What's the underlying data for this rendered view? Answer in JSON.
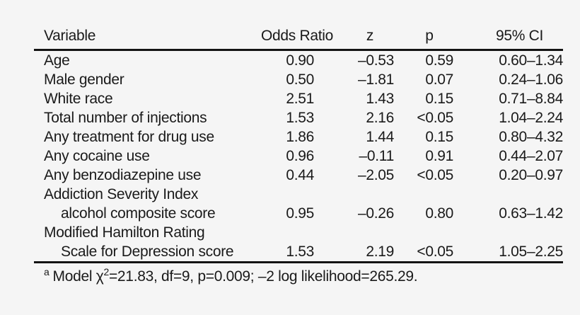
{
  "colors": {
    "background": "#f5f5f5",
    "text": "#1a1a1a",
    "rule": "#141414"
  },
  "table": {
    "columns": [
      {
        "key": "variable",
        "label": "Variable"
      },
      {
        "key": "odds_ratio",
        "label": "Odds Ratio"
      },
      {
        "key": "z",
        "label": "z"
      },
      {
        "key": "p",
        "label": "p"
      },
      {
        "key": "ci",
        "label": "95% CI"
      }
    ],
    "rows": [
      {
        "variable": "Age",
        "indent": false,
        "odds_ratio": "0.90",
        "z": "–0.53",
        "p": "0.59",
        "ci": "0.60–1.34"
      },
      {
        "variable": "Male gender",
        "indent": false,
        "odds_ratio": "0.50",
        "z": "–1.81",
        "p": "0.07",
        "ci": "0.24–1.06"
      },
      {
        "variable": "White race",
        "indent": false,
        "odds_ratio": "2.51",
        "z": "1.43",
        "p": "0.15",
        "ci": "0.71–8.84"
      },
      {
        "variable": "Total number of injections",
        "indent": false,
        "odds_ratio": "1.53",
        "z": "2.16",
        "p": "<0.05",
        "ci": "1.04–2.24"
      },
      {
        "variable": "Any treatment for drug use",
        "indent": false,
        "odds_ratio": "1.86",
        "z": "1.44",
        "p": "0.15",
        "ci": "0.80–4.32"
      },
      {
        "variable": "Any cocaine use",
        "indent": false,
        "odds_ratio": "0.96",
        "z": "–0.11",
        "p": "0.91",
        "ci": "0.44–2.07"
      },
      {
        "variable": "Any benzodiazepine use",
        "indent": false,
        "odds_ratio": "0.44",
        "z": "–2.05",
        "p": "<0.05",
        "ci": "0.20–0.97"
      },
      {
        "variable": "Addiction Severity Index",
        "indent": false,
        "odds_ratio": "",
        "z": "",
        "p": "",
        "ci": ""
      },
      {
        "variable": "alcohol composite score",
        "indent": true,
        "odds_ratio": "0.95",
        "z": "–0.26",
        "p": "0.80",
        "ci": "0.63–1.42"
      },
      {
        "variable": "Modified Hamilton Rating",
        "indent": false,
        "odds_ratio": "",
        "z": "",
        "p": "",
        "ci": ""
      },
      {
        "variable": "Scale for Depression score",
        "indent": true,
        "odds_ratio": "1.53",
        "z": "2.19",
        "p": "<0.05",
        "ci": "1.05–2.25"
      }
    ],
    "footnote": {
      "marker": "a",
      "before_chi": "Model ",
      "chi": "χ",
      "chi_exponent": "2",
      "after_chi": "=21.83, df=9, p=0.009; –2 log likelihood=265.29."
    }
  }
}
